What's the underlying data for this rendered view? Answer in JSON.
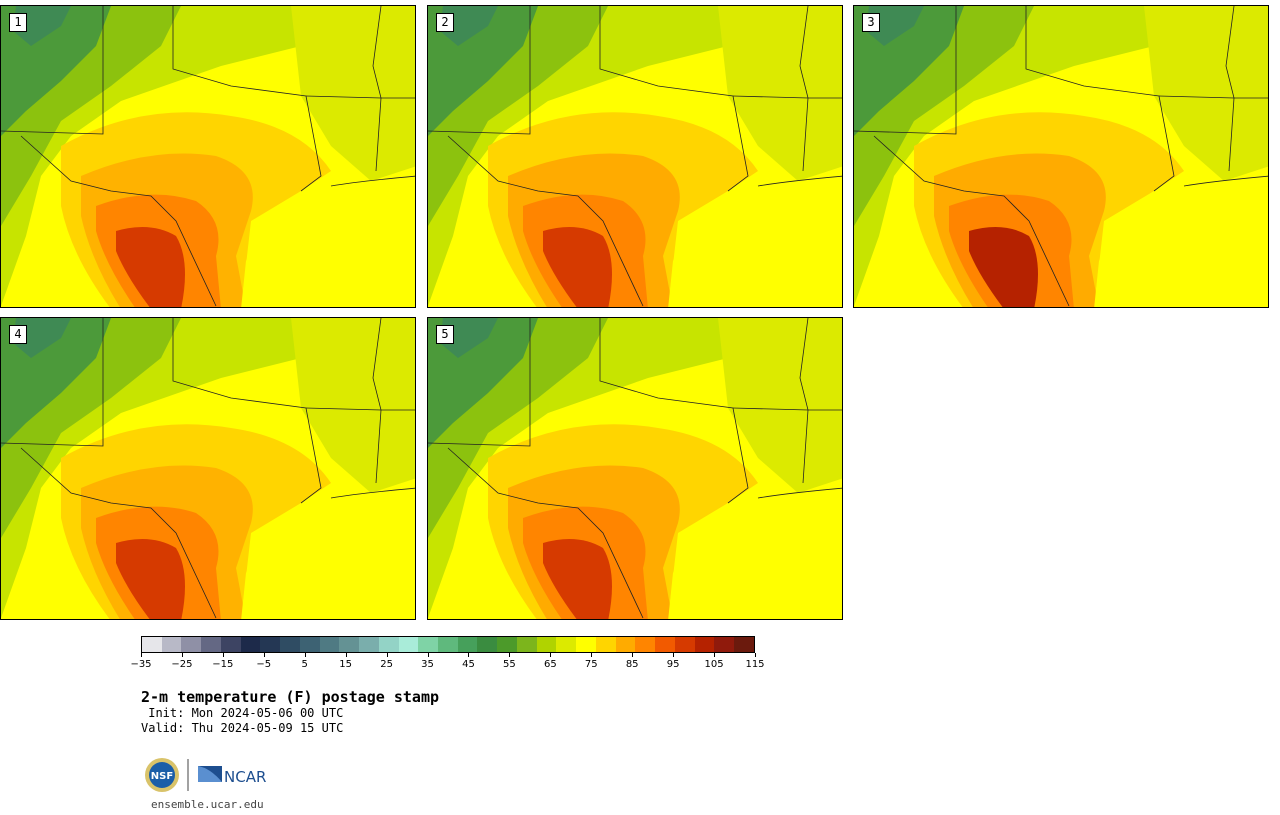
{
  "panels": [
    {
      "label": "1",
      "variant": 0
    },
    {
      "label": "2",
      "variant": 1
    },
    {
      "label": "3",
      "variant": 2
    },
    {
      "label": "4",
      "variant": 3
    },
    {
      "label": "5",
      "variant": 4
    }
  ],
  "colorbar": {
    "colors": [
      "#e6e6ea",
      "#b8b9c7",
      "#8f90a6",
      "#646884",
      "#3d4463",
      "#1d2a4a",
      "#243754",
      "#2f4c63",
      "#3d6273",
      "#4f7a83",
      "#649294",
      "#7aaeac",
      "#93d3c6",
      "#a9ecd9",
      "#7fd3a6",
      "#5fb97d",
      "#46a05b",
      "#3a8c40",
      "#4c9a2a",
      "#7cb51c",
      "#b0d300",
      "#dcea00",
      "#ffff00",
      "#ffd500",
      "#ffab00",
      "#ff8500",
      "#f25a00",
      "#d63a00",
      "#b52200",
      "#901a0c",
      "#6b1a0d"
    ],
    "tick_labels": [
      "-35",
      "-25",
      "-15",
      "-5",
      "5",
      "15",
      "25",
      "35",
      "45",
      "55",
      "65",
      "75",
      "85",
      "95",
      "105",
      "115"
    ]
  },
  "title": "2-m temperature (F) postage stamp",
  "init": " Init: Mon 2024-05-06 00 UTC",
  "valid": "Valid: Thu 2024-05-09 15 UTC",
  "logos": {
    "nsf_text": "NSF",
    "ncar_text": "NCAR"
  },
  "url": "ensemble.ucar.edu"
}
